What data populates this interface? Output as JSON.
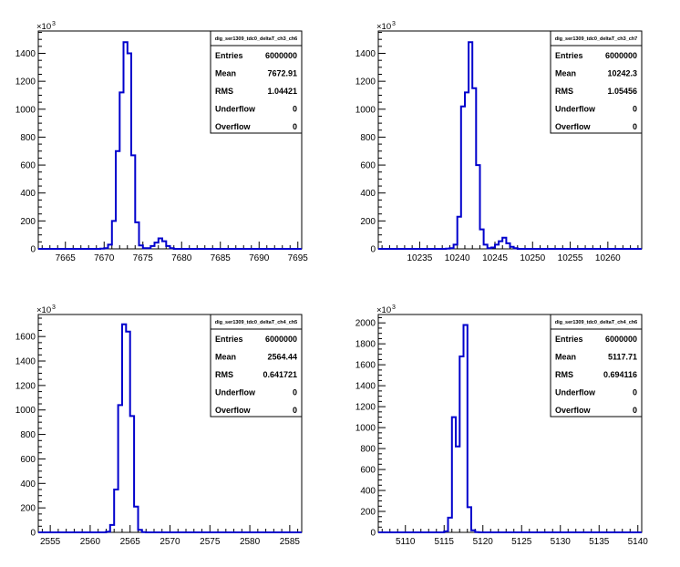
{
  "chart_data": [
    {
      "type": "histogram",
      "title": "dig_ser1309_tdc0_deltaT_ch3_ch6",
      "y_multiplier": "×10",
      "y_multiplier_exp": "3",
      "xlim": [
        7661.5,
        7695.5
      ],
      "ylim": [
        0,
        1560
      ],
      "x_ticks": [
        7665,
        7670,
        7675,
        7680,
        7685,
        7690,
        7695
      ],
      "y_ticks": [
        0,
        200,
        400,
        600,
        800,
        1000,
        1200,
        1400
      ],
      "bin_width": 0.5,
      "bins": [
        [
          7669.5,
          1
        ],
        [
          7670,
          5
        ],
        [
          7670.5,
          30
        ],
        [
          7671,
          200
        ],
        [
          7671.5,
          700
        ],
        [
          7672,
          1120
        ],
        [
          7672.5,
          1480
        ],
        [
          7673,
          1400
        ],
        [
          7673.5,
          670
        ],
        [
          7674,
          190
        ],
        [
          7674.5,
          25
        ],
        [
          7675,
          5
        ],
        [
          7675.5,
          5
        ],
        [
          7676,
          20
        ],
        [
          7676.5,
          45
        ],
        [
          7677,
          75
        ],
        [
          7677.5,
          55
        ],
        [
          7678,
          20
        ],
        [
          7678.5,
          5
        ]
      ],
      "stats": [
        {
          "label": "Entries",
          "value": "6000000"
        },
        {
          "label": "Mean",
          "value": "7672.91"
        },
        {
          "label": "RMS",
          "value": "1.04421"
        },
        {
          "label": "Underflow",
          "value": "0"
        },
        {
          "label": "Overflow",
          "value": "0"
        }
      ]
    },
    {
      "type": "histogram",
      "title": "dig_ser1309_tdc0_deltaT_ch3_ch7",
      "y_multiplier": "×10",
      "y_multiplier_exp": "3",
      "xlim": [
        10229.5,
        10264.5
      ],
      "ylim": [
        0,
        1560
      ],
      "x_ticks": [
        10235,
        10240,
        10245,
        10250,
        10255,
        10260
      ],
      "y_ticks": [
        0,
        200,
        400,
        600,
        800,
        1000,
        1200,
        1400
      ],
      "bin_width": 0.5,
      "bins": [
        [
          10238.5,
          1
        ],
        [
          10239,
          5
        ],
        [
          10239.5,
          30
        ],
        [
          10240,
          230
        ],
        [
          10240.5,
          1020
        ],
        [
          10241,
          1120
        ],
        [
          10241.5,
          1480
        ],
        [
          10242,
          1150
        ],
        [
          10242.5,
          600
        ],
        [
          10243,
          140
        ],
        [
          10243.5,
          30
        ],
        [
          10244,
          5
        ],
        [
          10244.5,
          10
        ],
        [
          10245,
          30
        ],
        [
          10245.5,
          55
        ],
        [
          10246,
          80
        ],
        [
          10246.5,
          40
        ],
        [
          10247,
          15
        ],
        [
          10247.5,
          5
        ]
      ],
      "stats": [
        {
          "label": "Entries",
          "value": "6000000"
        },
        {
          "label": "Mean",
          "value": "10242.3"
        },
        {
          "label": "RMS",
          "value": "1.05456"
        },
        {
          "label": "Underflow",
          "value": "0"
        },
        {
          "label": "Overflow",
          "value": "0"
        }
      ]
    },
    {
      "type": "histogram",
      "title": "dig_ser1309_tdc0_deltaT_ch4_ch5",
      "y_multiplier": "×10",
      "y_multiplier_exp": "3",
      "xlim": [
        2553.5,
        2586.5
      ],
      "ylim": [
        0,
        1780
      ],
      "x_ticks": [
        2555,
        2560,
        2565,
        2570,
        2575,
        2580,
        2585
      ],
      "y_ticks": [
        0,
        200,
        400,
        600,
        800,
        1000,
        1200,
        1400,
        1600
      ],
      "bin_width": 0.5,
      "bins": [
        [
          2562,
          5
        ],
        [
          2562.5,
          60
        ],
        [
          2563,
          350
        ],
        [
          2563.5,
          1040
        ],
        [
          2564,
          1700
        ],
        [
          2564.5,
          1640
        ],
        [
          2565,
          950
        ],
        [
          2565.5,
          210
        ],
        [
          2566,
          20
        ],
        [
          2566.5,
          2
        ]
      ],
      "stats": [
        {
          "label": "Entries",
          "value": "6000000"
        },
        {
          "label": "Mean",
          "value": "2564.44"
        },
        {
          "label": "RMS",
          "value": "0.641721"
        },
        {
          "label": "Underflow",
          "value": "0"
        },
        {
          "label": "Overflow",
          "value": "0"
        }
      ]
    },
    {
      "type": "histogram",
      "title": "dig_ser1309_tdc0_deltaT_ch4_ch6",
      "y_multiplier": "×10",
      "y_multiplier_exp": "3",
      "xlim": [
        5106.5,
        5140.5
      ],
      "ylim": [
        0,
        2080
      ],
      "x_ticks": [
        5110,
        5115,
        5120,
        5125,
        5130,
        5135,
        5140
      ],
      "y_ticks": [
        0,
        200,
        400,
        600,
        800,
        1000,
        1200,
        1400,
        1600,
        1800,
        2000
      ],
      "bin_width": 0.5,
      "bins": [
        [
          5115,
          10
        ],
        [
          5115.5,
          140
        ],
        [
          5116,
          1100
        ],
        [
          5116.5,
          820
        ],
        [
          5117,
          1680
        ],
        [
          5117.5,
          1980
        ],
        [
          5118,
          240
        ],
        [
          5118.5,
          20
        ],
        [
          5119,
          2
        ]
      ],
      "stats": [
        {
          "label": "Entries",
          "value": "6000000"
        },
        {
          "label": "Mean",
          "value": "5117.71"
        },
        {
          "label": "RMS",
          "value": "0.694116"
        },
        {
          "label": "Underflow",
          "value": "0"
        },
        {
          "label": "Overflow",
          "value": "0"
        }
      ]
    }
  ],
  "colors": {
    "histogram_line": "#0000cc",
    "axis": "#000000",
    "background": "#ffffff"
  }
}
